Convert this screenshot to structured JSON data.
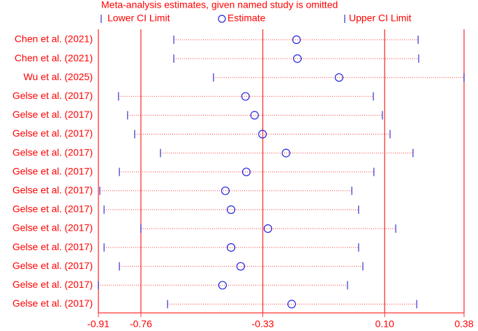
{
  "chart_data": {
    "type": "influence",
    "title": "Meta-analysis estimates, given named study is omitted",
    "categories": [
      "Chen et al. (2021)",
      "Chen et al. (2021)",
      "Wu et al. (2025)",
      "Gelse et al. (2017)",
      "Gelse et al. (2017)",
      "Gelse et al. (2017)",
      "Gelse et al. (2017)",
      "Gelse et al. (2017)",
      "Gelse et al. (2017)",
      "Gelse et al. (2017)",
      "Gelse et al. (2017)",
      "Gelse et al. (2017)",
      "Gelse et al. (2017)",
      "Gelse et al. (2017)",
      "Gelse et al. (2017)"
    ],
    "series": [
      {
        "name": "Lower CI Limit",
        "color": "#3333cc",
        "values": [
          -0.644,
          -0.644,
          -0.504,
          -0.839,
          -0.807,
          -0.782,
          -0.691,
          -0.836,
          -0.905,
          -0.89,
          -0.76,
          -0.89,
          -0.836,
          -0.91,
          -0.666
        ]
      },
      {
        "name": "Estimate",
        "color": "#2222dd",
        "values": [
          -0.211,
          -0.208,
          -0.061,
          -0.391,
          -0.359,
          -0.331,
          -0.248,
          -0.388,
          -0.462,
          -0.442,
          -0.312,
          -0.442,
          -0.408,
          -0.472,
          -0.228
        ]
      },
      {
        "name": "Upper CI Limit",
        "color": "#3333cc",
        "values": [
          0.218,
          0.22,
          0.38,
          0.06,
          0.092,
          0.119,
          0.2,
          0.062,
          -0.016,
          0.008,
          0.139,
          0.008,
          0.023,
          -0.031,
          0.213
        ]
      }
    ],
    "xlim": [
      -0.91,
      0.38
    ],
    "xticks": [
      -0.91,
      -0.76,
      -0.33,
      {
        "value": 0.1,
        "label": "0.10"
      },
      0.38
    ],
    "reference_lines": [
      -0.76,
      -0.33,
      0.1
    ],
    "text_color": "#ff0000",
    "line_color": "#ff3333"
  }
}
